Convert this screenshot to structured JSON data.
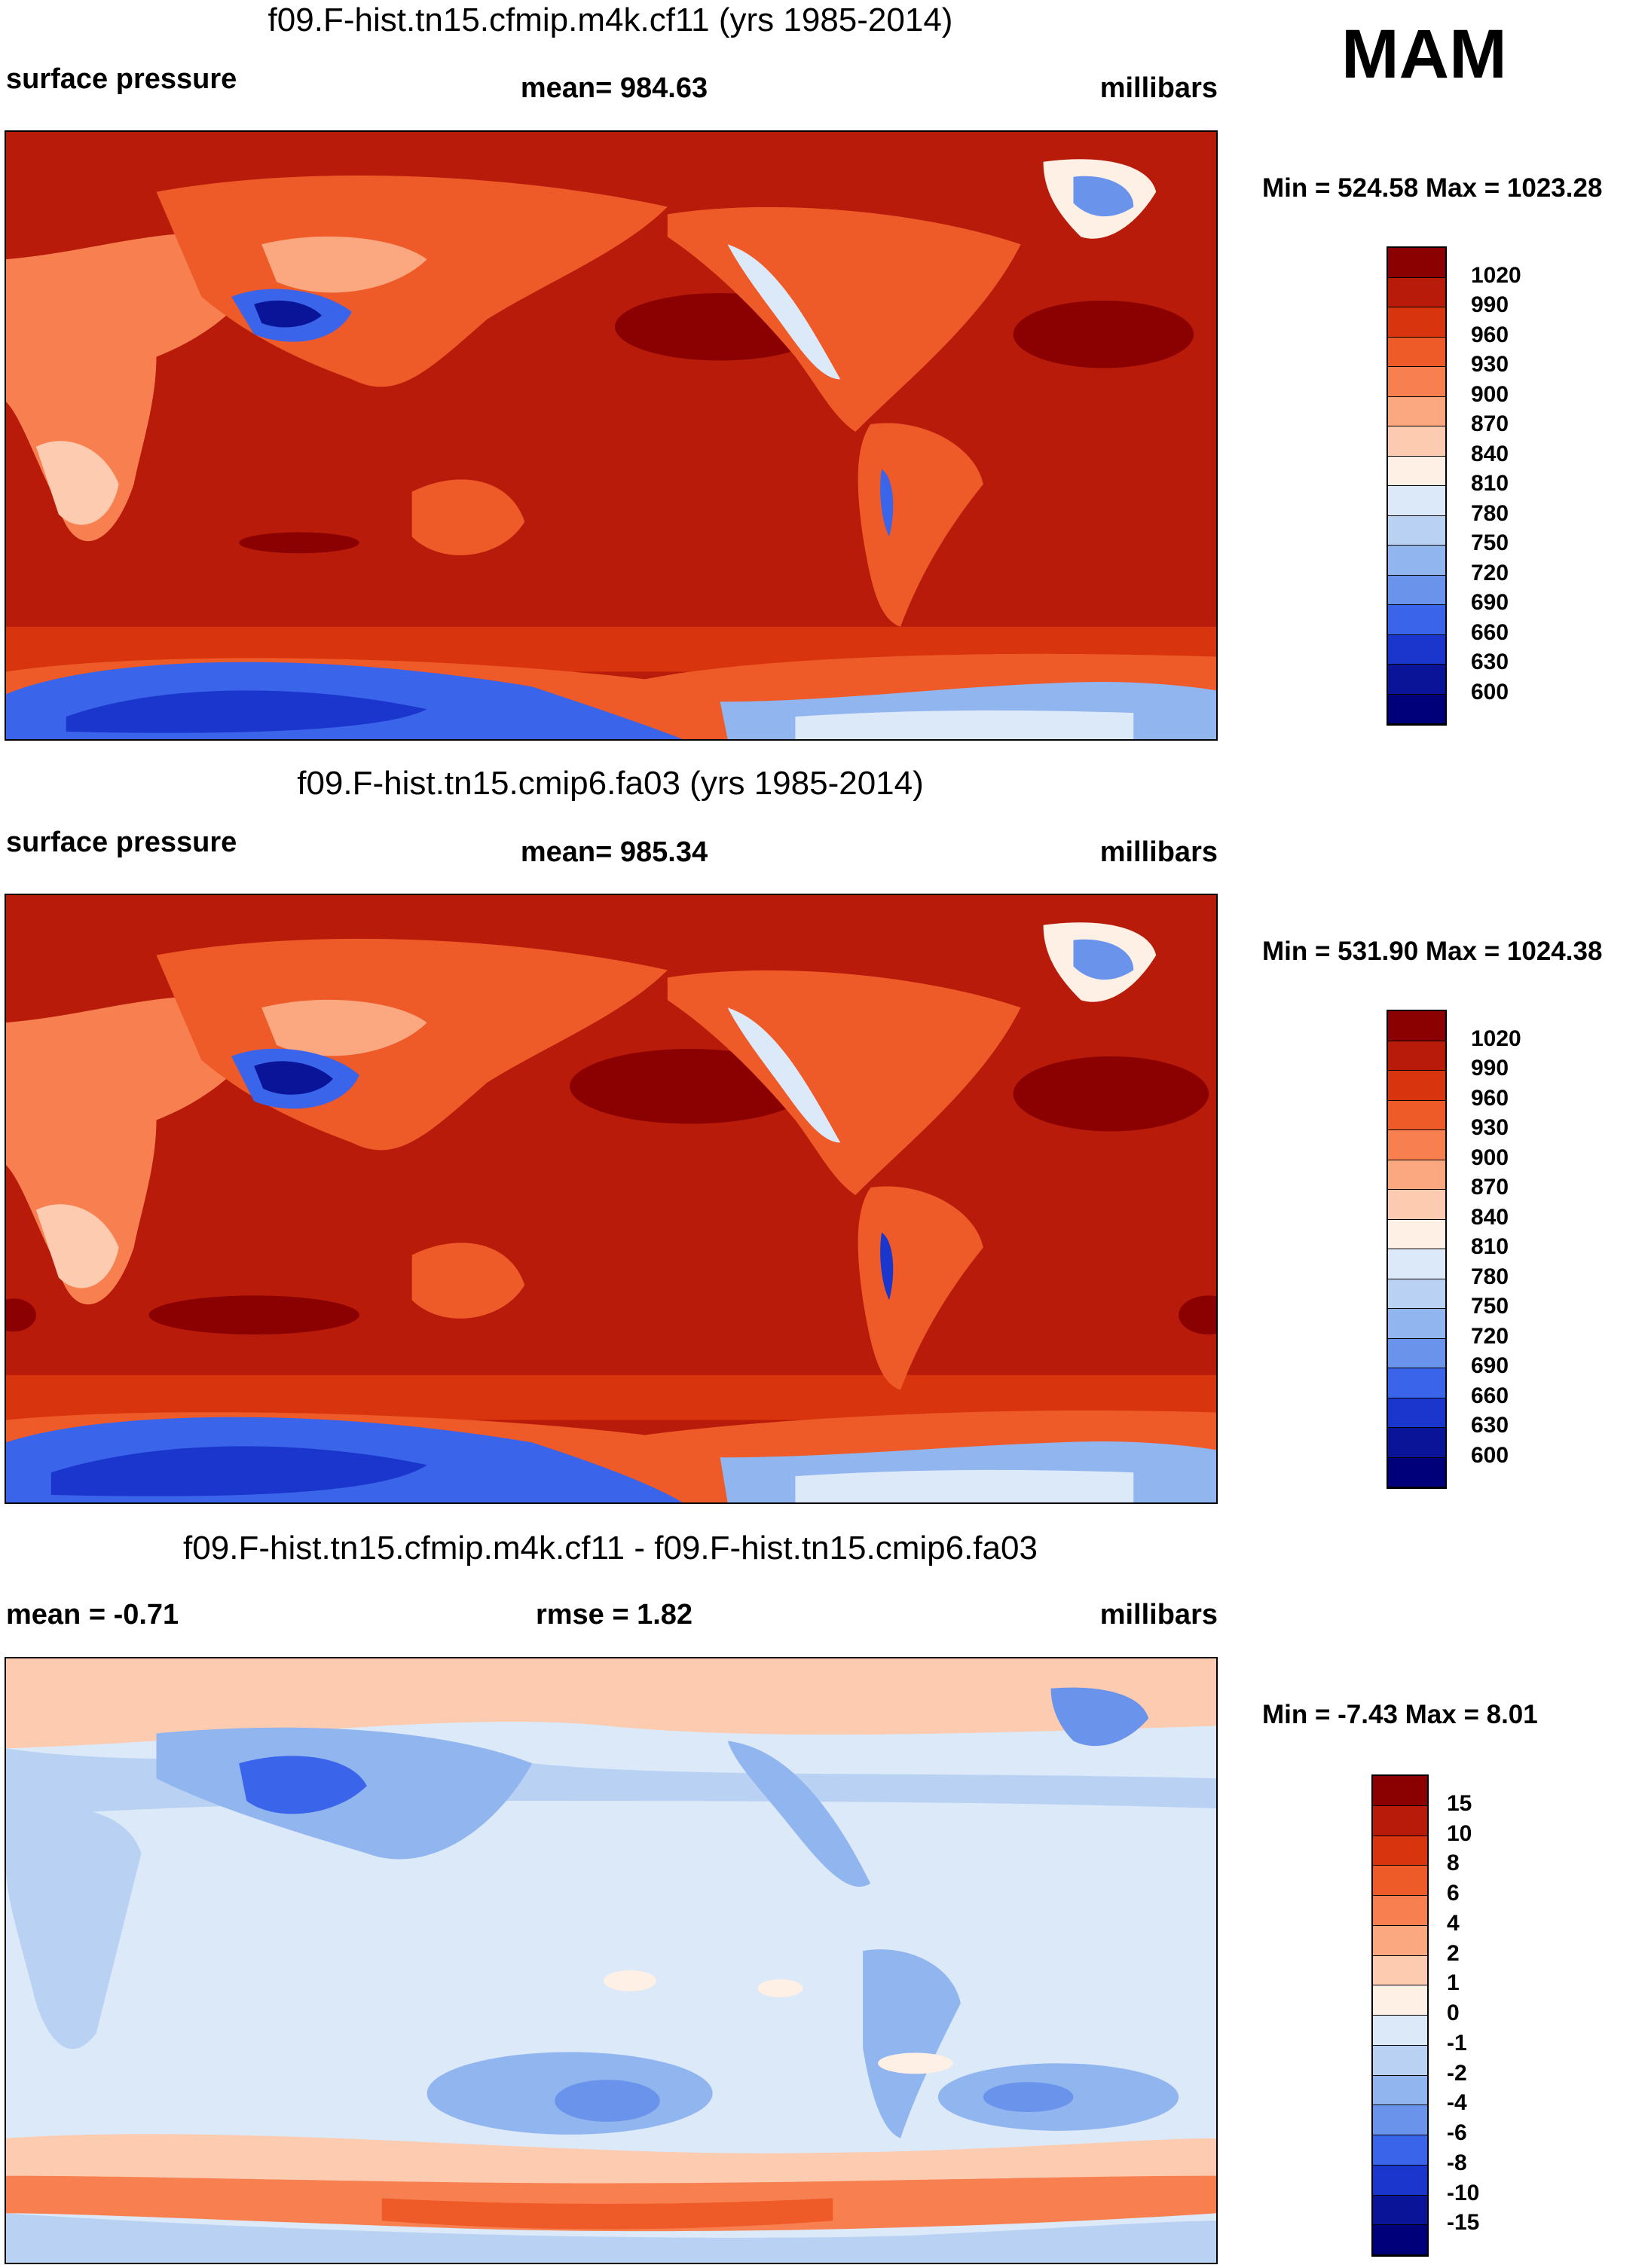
{
  "season": "MAM",
  "panels": [
    {
      "title": "f09.F-hist.tn15.cfmip.m4k.cf11 (yrs 1985-2014)",
      "left_label": "surface pressure",
      "center_label": "mean= 984.63",
      "units": "millibars",
      "minmax": "Min = 524.58 Max = 1023.28",
      "colorbar_labels": [
        "1020",
        "990",
        "960",
        "930",
        "900",
        "870",
        "840",
        "810",
        "780",
        "750",
        "720",
        "690",
        "660",
        "630",
        "600"
      ],
      "colorbar_colors": [
        "#8b0000",
        "#b81b0a",
        "#d8350f",
        "#ee5a28",
        "#f88050",
        "#fba77f",
        "#fdcbb0",
        "#fff0e6",
        "#dce9f8",
        "#b9d2f3",
        "#91b5ee",
        "#6a94ec",
        "#3a64ea",
        "#1a36cc",
        "#0a1499",
        "#00007a"
      ]
    },
    {
      "title": "f09.F-hist.tn15.cmip6.fa03 (yrs 1985-2014)",
      "left_label": "surface pressure",
      "center_label": "mean= 985.34",
      "units": "millibars",
      "minmax": "Min = 531.90 Max = 1024.38",
      "colorbar_labels": [
        "1020",
        "990",
        "960",
        "930",
        "900",
        "870",
        "840",
        "810",
        "780",
        "750",
        "720",
        "690",
        "660",
        "630",
        "600"
      ],
      "colorbar_colors": [
        "#8b0000",
        "#b81b0a",
        "#d8350f",
        "#ee5a28",
        "#f88050",
        "#fba77f",
        "#fdcbb0",
        "#fff0e6",
        "#dce9f8",
        "#b9d2f3",
        "#91b5ee",
        "#6a94ec",
        "#3a64ea",
        "#1a36cc",
        "#0a1499",
        "#00007a"
      ]
    },
    {
      "title": "f09.F-hist.tn15.cfmip.m4k.cf11 - f09.F-hist.tn15.cmip6.fa03",
      "left_label": "mean =  -0.71",
      "center_label": "rmse =   1.82",
      "units": "millibars",
      "minmax": "Min =  -7.43 Max =   8.01",
      "colorbar_labels": [
        "15",
        "10",
        "8",
        "6",
        "4",
        "2",
        "1",
        "0",
        "-1",
        "-2",
        "-4",
        "-6",
        "-8",
        "-10",
        "-15"
      ],
      "colorbar_colors": [
        "#8b0000",
        "#b81b0a",
        "#d8350f",
        "#ee5a28",
        "#f88050",
        "#fba77f",
        "#fdcbb0",
        "#fff0e6",
        "#dce9f8",
        "#b9d2f3",
        "#91b5ee",
        "#6a94ec",
        "#3a64ea",
        "#1a36cc",
        "#0a1499",
        "#00007a"
      ]
    }
  ]
}
